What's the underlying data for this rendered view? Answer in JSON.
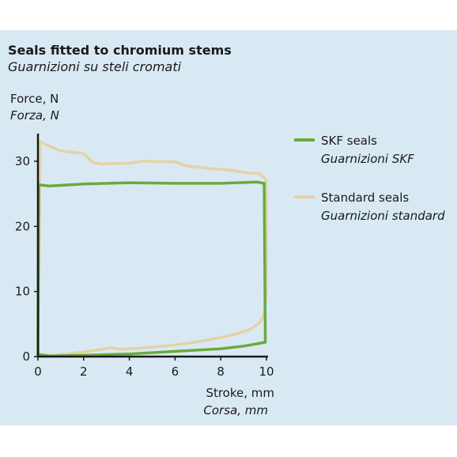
{
  "title": "Seals fitted to chromium stems",
  "subtitle": "Guarnizioni su steli cromati",
  "chart_data": {
    "type": "line",
    "ylabel": "Force, N",
    "ylabel_it": "Forza, N",
    "xlabel": "Stroke, mm",
    "xlabel_it": "Corsa, mm",
    "xlim": [
      0,
      10
    ],
    "ylim": [
      0,
      34
    ],
    "xticks": [
      0,
      2,
      4,
      6,
      8,
      10
    ],
    "yticks": [
      0,
      10,
      20,
      30
    ],
    "grid": false,
    "legend": "right",
    "series": [
      {
        "name": "SKF seals",
        "name_it": "Guarnizioni SKF",
        "color": "#6aaa3f",
        "points": [
          [
            0,
            0
          ],
          [
            0.03,
            26.4
          ],
          [
            0.5,
            26.2
          ],
          [
            2,
            26.5
          ],
          [
            4,
            26.7
          ],
          [
            6,
            26.6
          ],
          [
            8,
            26.6
          ],
          [
            9.6,
            26.8
          ],
          [
            9.9,
            26.6
          ],
          [
            9.95,
            2.2
          ],
          [
            9,
            1.6
          ],
          [
            8,
            1.2
          ],
          [
            6,
            0.8
          ],
          [
            4,
            0.4
          ],
          [
            2,
            0.2
          ],
          [
            0.5,
            0.1
          ],
          [
            0.1,
            0.3
          ],
          [
            0,
            0.3
          ]
        ]
      },
      {
        "name": "Standard seals",
        "name_it": "Guarnizioni standard",
        "color": "#e2d3a4",
        "points": [
          [
            0,
            0
          ],
          [
            0.1,
            33
          ],
          [
            0.5,
            32.3
          ],
          [
            1,
            31.6
          ],
          [
            2,
            31.2
          ],
          [
            2.4,
            29.8
          ],
          [
            2.8,
            29.6
          ],
          [
            4,
            29.7
          ],
          [
            4.6,
            30
          ],
          [
            6,
            29.9
          ],
          [
            6.5,
            29.3
          ],
          [
            7.5,
            28.9
          ],
          [
            8.5,
            28.6
          ],
          [
            9.2,
            28.2
          ],
          [
            9.7,
            28.1
          ],
          [
            9.95,
            27.3
          ],
          [
            10,
            26.8
          ],
          [
            10,
            10
          ],
          [
            9.9,
            6.5
          ],
          [
            9.7,
            5.2
          ],
          [
            9.3,
            4.2
          ],
          [
            8.5,
            3.3
          ],
          [
            7.5,
            2.6
          ],
          [
            6.5,
            2
          ],
          [
            5.5,
            1.6
          ],
          [
            4.5,
            1.3
          ],
          [
            3.6,
            1.1
          ],
          [
            3.2,
            1.4
          ],
          [
            2.8,
            1.1
          ],
          [
            2,
            0.7
          ],
          [
            1,
            0.3
          ],
          [
            0.3,
            0.1
          ],
          [
            0,
            0
          ]
        ]
      }
    ]
  }
}
